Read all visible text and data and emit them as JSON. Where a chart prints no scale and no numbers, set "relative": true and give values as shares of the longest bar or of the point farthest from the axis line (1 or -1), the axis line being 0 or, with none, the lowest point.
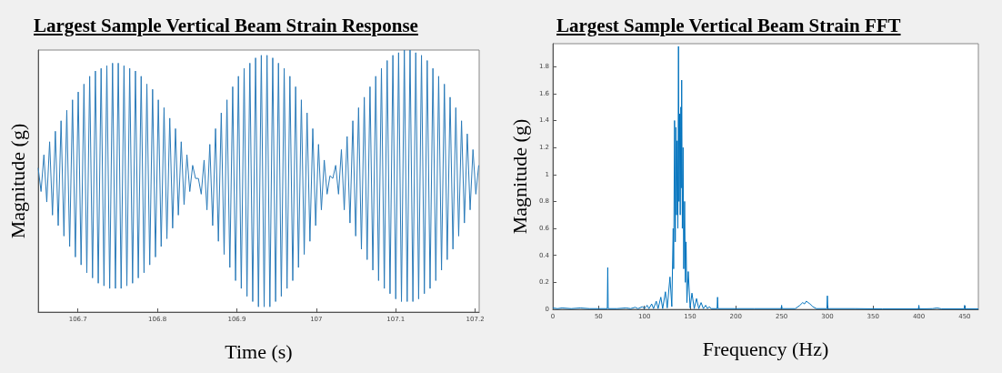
{
  "chart_data": [
    {
      "type": "line",
      "title": "Largest Sample Vertical Beam Strain Response",
      "xlabel": "Time (s)",
      "ylabel": "Magnitude (g)",
      "relative": true,
      "tick_labels": "x",
      "color": "#2b7bb9",
      "xlim": [
        106.65,
        107.205
      ],
      "xticks": [
        106.7,
        106.8,
        106.9,
        107,
        107.1,
        107.2
      ],
      "x": [
        106.65,
        106.6536,
        106.6572,
        106.6608,
        106.6644,
        106.668,
        106.6716,
        106.6752,
        106.6788,
        106.6824,
        106.686,
        106.6896,
        106.6932,
        106.6968,
        106.7004,
        106.704,
        106.7076,
        106.7112,
        106.7148,
        106.7184,
        106.722,
        106.7256,
        106.7292,
        106.7328,
        106.7364,
        106.74,
        106.7436,
        106.7472,
        106.7508,
        106.7544,
        106.758,
        106.7616,
        106.7652,
        106.7688,
        106.7724,
        106.776,
        106.7796,
        106.7832,
        106.7868,
        106.7904,
        106.794,
        106.7976,
        106.8012,
        106.8048,
        106.8084,
        106.812,
        106.8156,
        106.8192,
        106.8228,
        106.8264,
        106.83,
        106.8336,
        106.8372,
        106.8408,
        106.8444,
        106.848,
        106.8516,
        106.8552,
        106.8588,
        106.8624,
        106.866,
        106.8696,
        106.8732,
        106.8768,
        106.8804,
        106.884,
        106.8876,
        106.8912,
        106.8948,
        106.8984,
        106.902,
        106.9056,
        106.9092,
        106.9128,
        106.9164,
        106.92,
        106.9236,
        106.9272,
        106.9308,
        106.9344,
        106.938,
        106.9416,
        106.9452,
        106.9488,
        106.9524,
        106.956,
        106.9596,
        106.9632,
        106.9668,
        106.9704,
        106.974,
        106.9776,
        106.9812,
        106.9848,
        106.9884,
        106.992,
        106.9956,
        106.9992,
        107.0028,
        107.0064,
        107.01,
        107.0136,
        107.0172,
        107.0208,
        107.0244,
        107.028,
        107.0316,
        107.0352,
        107.0388,
        107.0424,
        107.046,
        107.0496,
        107.0532,
        107.0568,
        107.0604,
        107.064,
        107.0676,
        107.0712,
        107.0748,
        107.0784,
        107.082,
        107.0856,
        107.0892,
        107.0928,
        107.0964,
        107.1,
        107.1036,
        107.1072,
        107.1108,
        107.1144,
        107.118,
        107.1216,
        107.1252,
        107.1288,
        107.1324,
        107.136,
        107.1396,
        107.1432,
        107.1468,
        107.1504,
        107.154,
        107.1576,
        107.1612,
        107.1648,
        107.1684,
        107.172,
        107.1756,
        107.1792,
        107.1828,
        107.1864,
        107.19,
        107.1936,
        107.1972,
        107.2008,
        107.2044
      ],
      "values": [
        0.55,
        0.46,
        0.6,
        0.42,
        0.65,
        0.37,
        0.69,
        0.33,
        0.73,
        0.29,
        0.77,
        0.25,
        0.81,
        0.21,
        0.84,
        0.18,
        0.87,
        0.15,
        0.9,
        0.13,
        0.92,
        0.11,
        0.93,
        0.1,
        0.94,
        0.09,
        0.95,
        0.09,
        0.95,
        0.09,
        0.94,
        0.1,
        0.93,
        0.11,
        0.92,
        0.13,
        0.9,
        0.15,
        0.87,
        0.18,
        0.85,
        0.21,
        0.81,
        0.25,
        0.78,
        0.28,
        0.74,
        0.32,
        0.7,
        0.37,
        0.65,
        0.41,
        0.6,
        0.46,
        0.56,
        0.51,
        0.51,
        0.45,
        0.58,
        0.39,
        0.64,
        0.33,
        0.7,
        0.27,
        0.76,
        0.22,
        0.81,
        0.17,
        0.86,
        0.12,
        0.9,
        0.09,
        0.93,
        0.06,
        0.95,
        0.04,
        0.97,
        0.02,
        0.98,
        0.02,
        0.98,
        0.02,
        0.97,
        0.04,
        0.95,
        0.06,
        0.93,
        0.09,
        0.9,
        0.12,
        0.86,
        0.17,
        0.81,
        0.22,
        0.76,
        0.27,
        0.7,
        0.33,
        0.64,
        0.39,
        0.58,
        0.45,
        0.52,
        0.51,
        0.56,
        0.45,
        0.62,
        0.39,
        0.67,
        0.34,
        0.73,
        0.29,
        0.78,
        0.24,
        0.82,
        0.2,
        0.86,
        0.16,
        0.9,
        0.12,
        0.93,
        0.09,
        0.96,
        0.07,
        0.98,
        0.05,
        0.99,
        0.04,
        1.0,
        0.04,
        1.0,
        0.04,
        0.99,
        0.05,
        0.98,
        0.07,
        0.96,
        0.09,
        0.93,
        0.12,
        0.9,
        0.16,
        0.87,
        0.2,
        0.82,
        0.24,
        0.78,
        0.29,
        0.73,
        0.34,
        0.68,
        0.39,
        0.62,
        0.45,
        0.56
      ]
    },
    {
      "type": "line",
      "title": "Largest Sample Vertical Beam Strain FFT",
      "xlabel": "Frequency (Hz)",
      "ylabel": "Magnitude (g)",
      "color": "#0072bd",
      "xlim": [
        0,
        465
      ],
      "xticks": [
        0,
        50,
        100,
        150,
        200,
        250,
        300,
        350,
        400,
        450
      ],
      "ylim": [
        0,
        1.97
      ],
      "yticks": [
        0,
        0.2,
        0.4,
        0.6,
        0.8,
        1,
        1.2,
        1.4,
        1.6,
        1.8
      ],
      "x": [
        0,
        5,
        10,
        20,
        30,
        40,
        50,
        59.5,
        60,
        60.5,
        70,
        80,
        85,
        90,
        93,
        98,
        100,
        103,
        105,
        108,
        110,
        113,
        115,
        118,
        120,
        123,
        125,
        128,
        130,
        131.5,
        132,
        133,
        133.8,
        134.5,
        135.2,
        136,
        136.6,
        137.3,
        137.9,
        138.6,
        139.2,
        139.9,
        140.3,
        140.8,
        141.5,
        142.3,
        143,
        144,
        144.8,
        145.6,
        146.5,
        148,
        150,
        152,
        154.5,
        157,
        159.5,
        162,
        164.5,
        167,
        169,
        171,
        173,
        179.5,
        180,
        180.5,
        200,
        220,
        249.5,
        250,
        250.5,
        265,
        270,
        273,
        275,
        277,
        279,
        281,
        284,
        288,
        299.5,
        300,
        300.5,
        330,
        360,
        399.5,
        400,
        400.5,
        415,
        420,
        425,
        449.5,
        450,
        450.5,
        465
      ],
      "values": [
        0.01,
        0.005,
        0.01,
        0.005,
        0.01,
        0.005,
        0.005,
        0.005,
        0.31,
        0.005,
        0.005,
        0.01,
        0.005,
        0.015,
        0.005,
        0.02,
        0.005,
        0.03,
        0.005,
        0.04,
        0.005,
        0.06,
        0.005,
        0.09,
        0.005,
        0.13,
        0.01,
        0.24,
        0.02,
        0.6,
        0.3,
        1.4,
        0.5,
        1.35,
        0.7,
        1.25,
        0.6,
        1.95,
        0.8,
        1.45,
        0.7,
        1.5,
        0.9,
        1.7,
        0.6,
        1.2,
        0.3,
        0.8,
        0.2,
        0.5,
        0.05,
        0.28,
        0.01,
        0.12,
        0.005,
        0.08,
        0.005,
        0.05,
        0.005,
        0.03,
        0.005,
        0.02,
        0.005,
        0.005,
        0.09,
        0.005,
        0.005,
        0.005,
        0.005,
        0.03,
        0.005,
        0.005,
        0.03,
        0.05,
        0.04,
        0.06,
        0.05,
        0.04,
        0.02,
        0.005,
        0.005,
        0.1,
        0.005,
        0.005,
        0.003,
        0.003,
        0.03,
        0.003,
        0.005,
        0.01,
        0.003,
        0.003,
        0.03,
        0.003,
        0.003
      ]
    }
  ]
}
